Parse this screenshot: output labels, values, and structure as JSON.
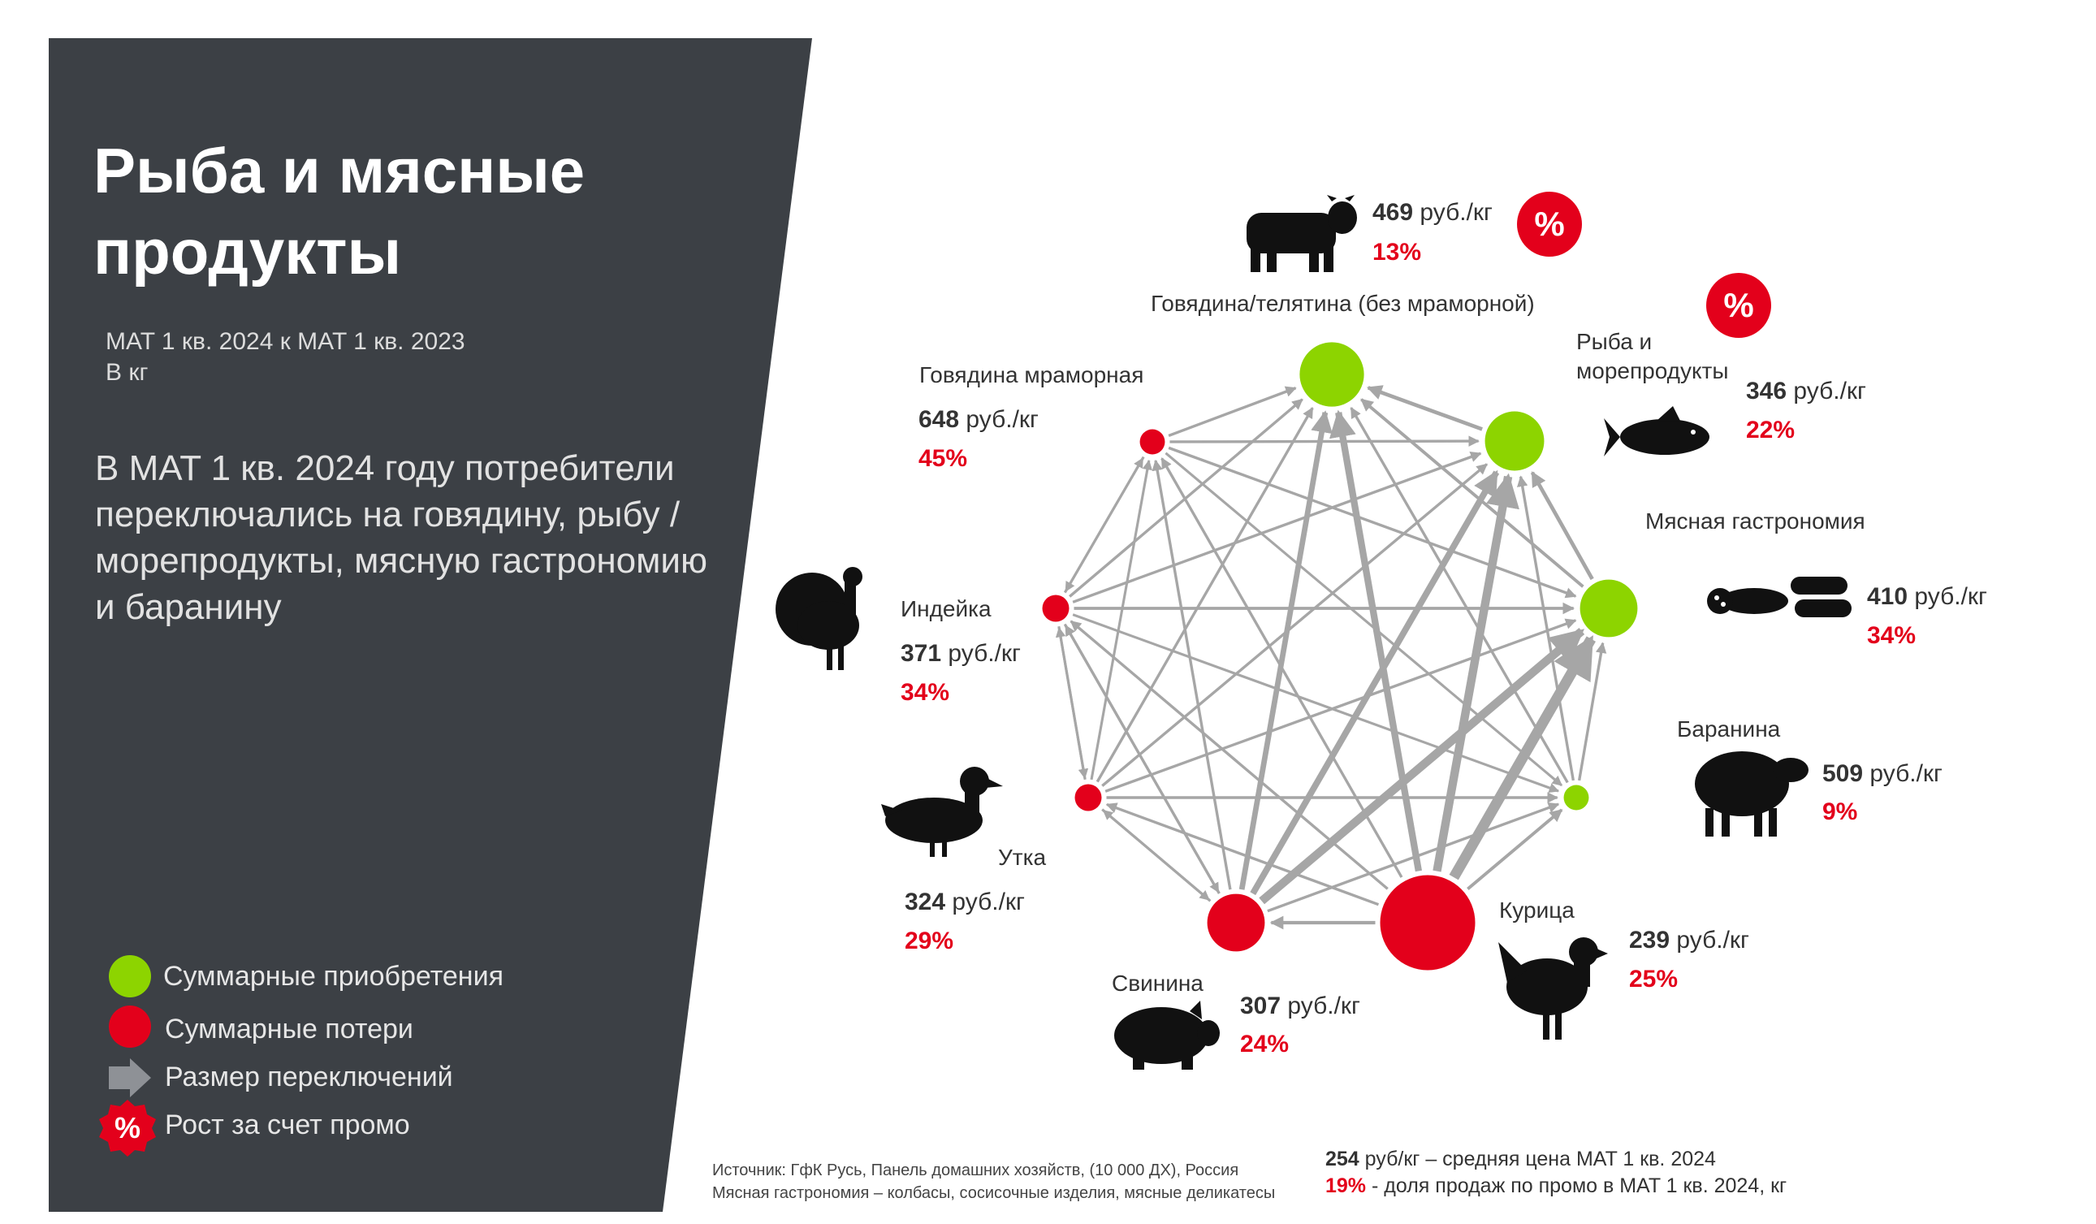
{
  "title": "Рыба и мясные продукты",
  "subtitle": [
    "MAT 1 кв. 2024 к MAT 1 кв. 2023",
    "В кг"
  ],
  "summary": "В MAT 1 кв. 2024 году потребители переключались на говядину, рыбу / морепродукты, мясную гастрономию и баранину",
  "legend": {
    "gain": "Суммарные приобретения",
    "loss": "Суммарные потери",
    "switch": "Размер переключений",
    "promo": "Рост за счет промо",
    "promo_symbol": "%"
  },
  "colors": {
    "panel": "#3c4045",
    "gain": "#8dd400",
    "loss": "#e3001b",
    "arrow": "#a6a6a6"
  },
  "network": {
    "nodes": [
      {
        "id": "beef",
        "label": "Говядина/телятина (без мраморной)",
        "price_value": "469",
        "price_unit": " руб./кг",
        "pct": "13%",
        "type": "gain",
        "promo": true,
        "size": 3.2
      },
      {
        "id": "fish",
        "label_lines": [
          "Рыба и",
          "морепродукты"
        ],
        "price_value": "346",
        "price_unit": " руб./кг",
        "pct": "22%",
        "type": "gain",
        "promo": true,
        "size": 2.9
      },
      {
        "id": "gastro",
        "label": "Мясная гастрономия",
        "price_value": "410",
        "price_unit": " руб./кг",
        "pct": "34%",
        "type": "gain",
        "promo": false,
        "size": 2.8
      },
      {
        "id": "lamb",
        "label": "Баранина",
        "price_value": "509",
        "price_unit": " руб./кг",
        "pct": "9%",
        "type": "gain",
        "promo": false,
        "size": 0.9
      },
      {
        "id": "chicken",
        "label": "Курица",
        "price_value": "239",
        "price_unit": " руб./кг",
        "pct": "25%",
        "type": "loss",
        "promo": false,
        "size": 5
      },
      {
        "id": "pork",
        "label": "Свинина",
        "price_value": "307",
        "price_unit": " руб./кг",
        "pct": "24%",
        "type": "loss",
        "promo": false,
        "size": 2.8
      },
      {
        "id": "duck",
        "label": "Утка",
        "price_value": "324",
        "price_unit": " руб./кг",
        "pct": "29%",
        "type": "loss",
        "promo": false,
        "size": 1
      },
      {
        "id": "turkey",
        "label": "Индейка",
        "price_value": "371",
        "price_unit": " руб./кг",
        "pct": "34%",
        "type": "loss",
        "promo": false,
        "size": 1
      },
      {
        "id": "marbled",
        "label": "Говядина мраморная",
        "price_value": "648",
        "price_unit": " руб./кг",
        "pct": "45%",
        "type": "loss",
        "promo": false,
        "size": 0.9
      }
    ],
    "edges": [
      [
        4,
        2,
        5
      ],
      [
        4,
        1,
        4
      ],
      [
        4,
        0,
        3.2
      ],
      [
        5,
        2,
        4
      ],
      [
        5,
        1,
        3
      ],
      [
        5,
        0,
        2.6
      ],
      [
        4,
        5,
        1.6
      ],
      [
        4,
        3,
        1.5
      ],
      [
        2,
        1,
        1.8
      ],
      [
        2,
        0,
        1.5
      ],
      [
        1,
        0,
        1.8
      ],
      [
        3,
        2,
        1.3
      ],
      [
        3,
        1,
        1.3
      ],
      [
        3,
        0,
        1.3
      ],
      [
        8,
        0,
        1.3
      ],
      [
        8,
        1,
        1.3
      ],
      [
        8,
        2,
        1.3
      ],
      [
        8,
        3,
        1.2
      ],
      [
        8,
        7,
        1.2
      ],
      [
        7,
        0,
        1.3
      ],
      [
        7,
        1,
        1.3
      ],
      [
        7,
        2,
        1.4
      ],
      [
        7,
        3,
        1.2
      ],
      [
        7,
        8,
        1.2
      ],
      [
        7,
        6,
        1.2
      ],
      [
        7,
        5,
        1.2
      ],
      [
        6,
        0,
        1.3
      ],
      [
        6,
        1,
        1.3
      ],
      [
        6,
        2,
        1.3
      ],
      [
        6,
        3,
        1.3
      ],
      [
        6,
        7,
        1.2
      ],
      [
        6,
        8,
        1.2
      ],
      [
        6,
        5,
        1.2
      ],
      [
        5,
        8,
        1.3
      ],
      [
        5,
        7,
        1.3
      ],
      [
        5,
        6,
        1.2
      ],
      [
        5,
        3,
        1.3
      ],
      [
        4,
        8,
        1.3
      ],
      [
        4,
        7,
        1.3
      ],
      [
        4,
        6,
        1.3
      ]
    ]
  },
  "footer": {
    "source": "Источник: ГфК Русь, Панель домашних хозяйств, (10 000 ДХ), Россия",
    "note": "Мясная гастрономия – колбасы, сосисочные изделия, мясные деликатесы",
    "avg_value": "254",
    "avg_text": " руб/кг – средняя цена MAT 1 кв. 2024",
    "promo_value": "19%",
    "promo_text": " - доля продаж по промо в MAT 1 кв. 2024, кг"
  }
}
